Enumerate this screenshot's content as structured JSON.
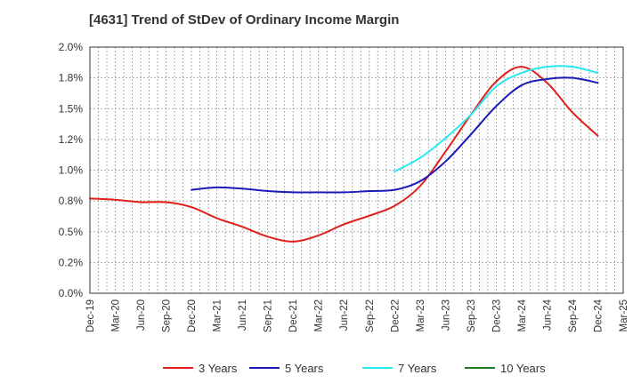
{
  "chart_data": {
    "type": "line",
    "title": "[4631]  Trend of StDev of Ordinary Income Margin",
    "xlabel": "",
    "ylabel": "",
    "ylim": [
      0,
      2.0
    ],
    "y_ticks": [
      "0.0%",
      "0.2%",
      "0.5%",
      "0.8%",
      "1.0%",
      "1.2%",
      "1.5%",
      "1.8%",
      "2.0%"
    ],
    "x_ticks": [
      "Dec-19",
      "Mar-20",
      "Jun-20",
      "Sep-20",
      "Dec-20",
      "Mar-21",
      "Jun-21",
      "Sep-21",
      "Dec-21",
      "Mar-22",
      "Jun-22",
      "Sep-22",
      "Dec-22",
      "Mar-23",
      "Jun-23",
      "Sep-23",
      "Dec-23",
      "Mar-24",
      "Jun-24",
      "Sep-24",
      "Dec-24",
      "Mar-25"
    ],
    "grid": true,
    "legend_position": "bottom",
    "series": [
      {
        "name": "3 Years",
        "color": "#e0201b",
        "values": [
          0.77,
          0.76,
          0.74,
          0.74,
          0.7,
          0.61,
          0.54,
          0.46,
          0.42,
          0.47,
          0.56,
          0.63,
          0.71,
          0.87,
          1.15,
          1.45,
          1.72,
          1.84,
          1.71,
          1.47,
          1.28,
          null
        ]
      },
      {
        "name": "5 Years",
        "color": "#1a1ab8",
        "values": [
          null,
          null,
          null,
          null,
          0.84,
          0.86,
          0.85,
          0.83,
          0.82,
          0.82,
          0.82,
          0.83,
          0.84,
          0.91,
          1.07,
          1.29,
          1.52,
          1.69,
          1.74,
          1.75,
          1.71,
          null
        ]
      },
      {
        "name": "7 Years",
        "color": "#28e8f0",
        "values": [
          null,
          null,
          null,
          null,
          null,
          null,
          null,
          null,
          null,
          null,
          null,
          null,
          0.99,
          1.1,
          1.26,
          1.45,
          1.68,
          1.79,
          1.84,
          1.84,
          1.79,
          null
        ]
      },
      {
        "name": "10 Years",
        "color": "#1e7a1e",
        "values": [
          null,
          null,
          null,
          null,
          null,
          null,
          null,
          null,
          null,
          null,
          null,
          null,
          null,
          null,
          null,
          null,
          null,
          null,
          null,
          null,
          null,
          null
        ]
      }
    ]
  }
}
